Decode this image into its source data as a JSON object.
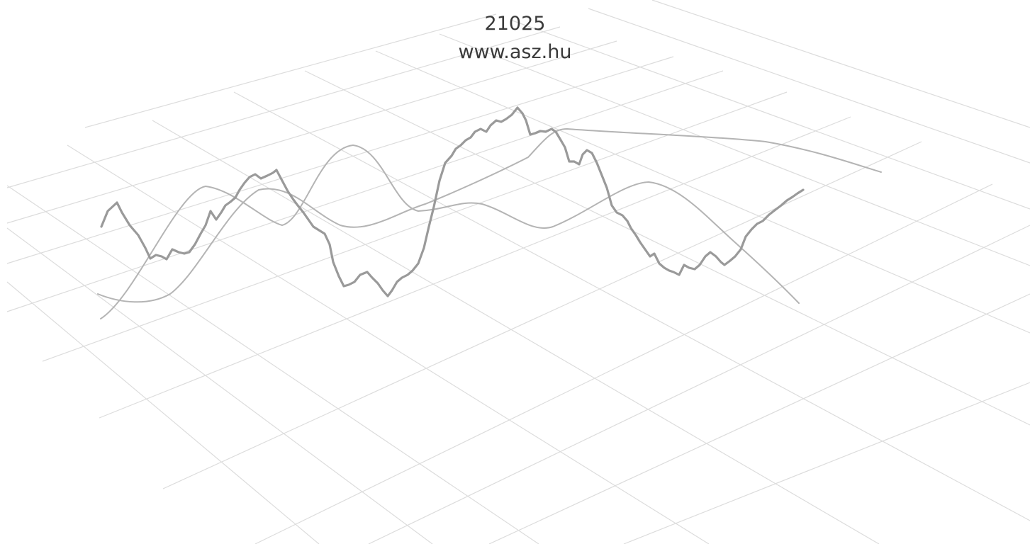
{
  "header": {
    "code": "21025",
    "website": "www.asz.hu"
  },
  "colors": {
    "grid": "#dcdcdc",
    "main_line": "#9a9a9a",
    "thin_line": "#b4b4b4",
    "text": "#3a3a3a"
  },
  "decoration": {
    "description_icon": "perspective-grid-with-wave-lines"
  }
}
